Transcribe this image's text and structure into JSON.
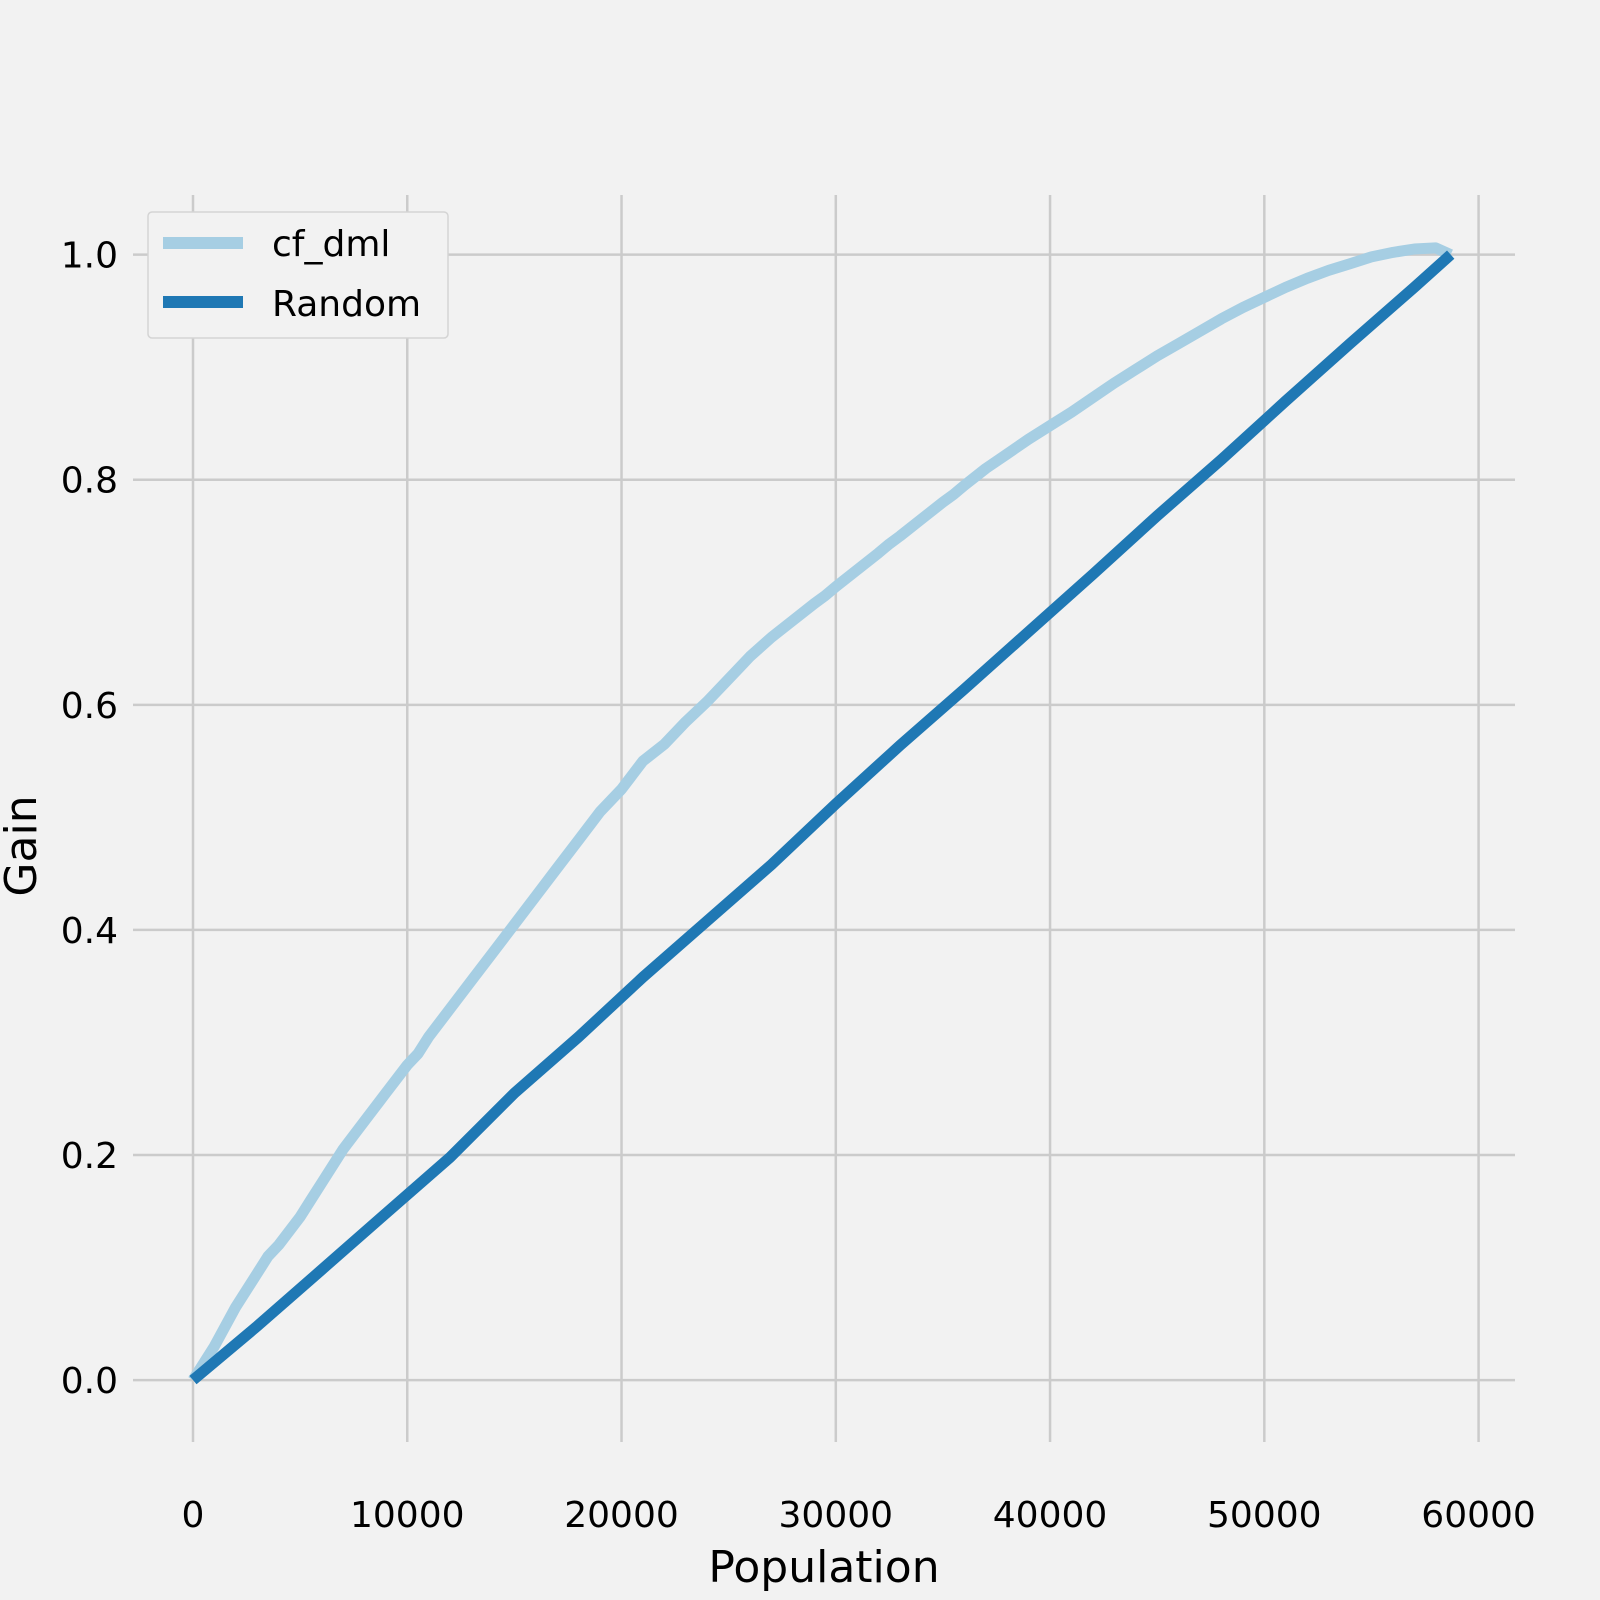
{
  "chart_data": {
    "type": "line",
    "title": "",
    "xlabel": "Population",
    "ylabel": "Gain",
    "xlim": [
      -2800,
      61700
    ],
    "ylim": [
      -0.055,
      1.053
    ],
    "xticks": [
      0,
      10000,
      20000,
      30000,
      40000,
      50000,
      60000
    ],
    "xtick_labels": [
      "0",
      "10000",
      "20000",
      "30000",
      "40000",
      "50000",
      "60000"
    ],
    "yticks": [
      0.0,
      0.2,
      0.4,
      0.6,
      0.8,
      1.0
    ],
    "ytick_labels": [
      "0.0",
      "0.2",
      "0.4",
      "0.6",
      "0.8",
      "1.0"
    ],
    "grid": true,
    "legend_position": "top-left",
    "series": [
      {
        "name": "cf_dml",
        "color": "#a6cee3",
        "x": [
          0,
          1000,
          2000,
          3000,
          3500,
          4000,
          5000,
          5500,
          6000,
          7000,
          8000,
          9000,
          10000,
          10500,
          11000,
          12000,
          13000,
          14000,
          15000,
          16000,
          17000,
          18000,
          19000,
          20000,
          21000,
          22000,
          23000,
          24000,
          25000,
          25500,
          26000,
          27000,
          28000,
          29000,
          29500,
          30000,
          31000,
          32000,
          32500,
          33000,
          34000,
          35000,
          35500,
          36000,
          37000,
          38000,
          39000,
          40000,
          41000,
          42000,
          43000,
          44000,
          45000,
          46000,
          47000,
          48000,
          49000,
          50000,
          51000,
          52000,
          53000,
          54000,
          55000,
          56000,
          57000,
          58000,
          58700
        ],
        "y": [
          0.0,
          0.03,
          0.065,
          0.095,
          0.11,
          0.12,
          0.145,
          0.16,
          0.175,
          0.205,
          0.23,
          0.255,
          0.28,
          0.29,
          0.305,
          0.33,
          0.355,
          0.38,
          0.405,
          0.43,
          0.455,
          0.48,
          0.505,
          0.525,
          0.55,
          0.565,
          0.585,
          0.603,
          0.623,
          0.633,
          0.643,
          0.66,
          0.675,
          0.69,
          0.697,
          0.705,
          0.72,
          0.735,
          0.743,
          0.75,
          0.765,
          0.78,
          0.787,
          0.795,
          0.81,
          0.823,
          0.836,
          0.848,
          0.86,
          0.873,
          0.886,
          0.898,
          0.91,
          0.921,
          0.932,
          0.943,
          0.953,
          0.962,
          0.971,
          0.979,
          0.986,
          0.992,
          0.998,
          1.002,
          1.005,
          1.006,
          1.0
        ]
      },
      {
        "name": "Random",
        "color": "#1f78b4",
        "x": [
          0,
          3000,
          6000,
          9000,
          12000,
          15000,
          18000,
          21000,
          24000,
          27000,
          30000,
          33000,
          36000,
          39000,
          42000,
          45000,
          48000,
          51000,
          54000,
          57000,
          58700
        ],
        "y": [
          0.0,
          0.048,
          0.098,
          0.148,
          0.198,
          0.255,
          0.305,
          0.358,
          0.408,
          0.458,
          0.512,
          0.564,
          0.614,
          0.665,
          0.716,
          0.768,
          0.818,
          0.87,
          0.921,
          0.971,
          1.0
        ]
      }
    ]
  }
}
